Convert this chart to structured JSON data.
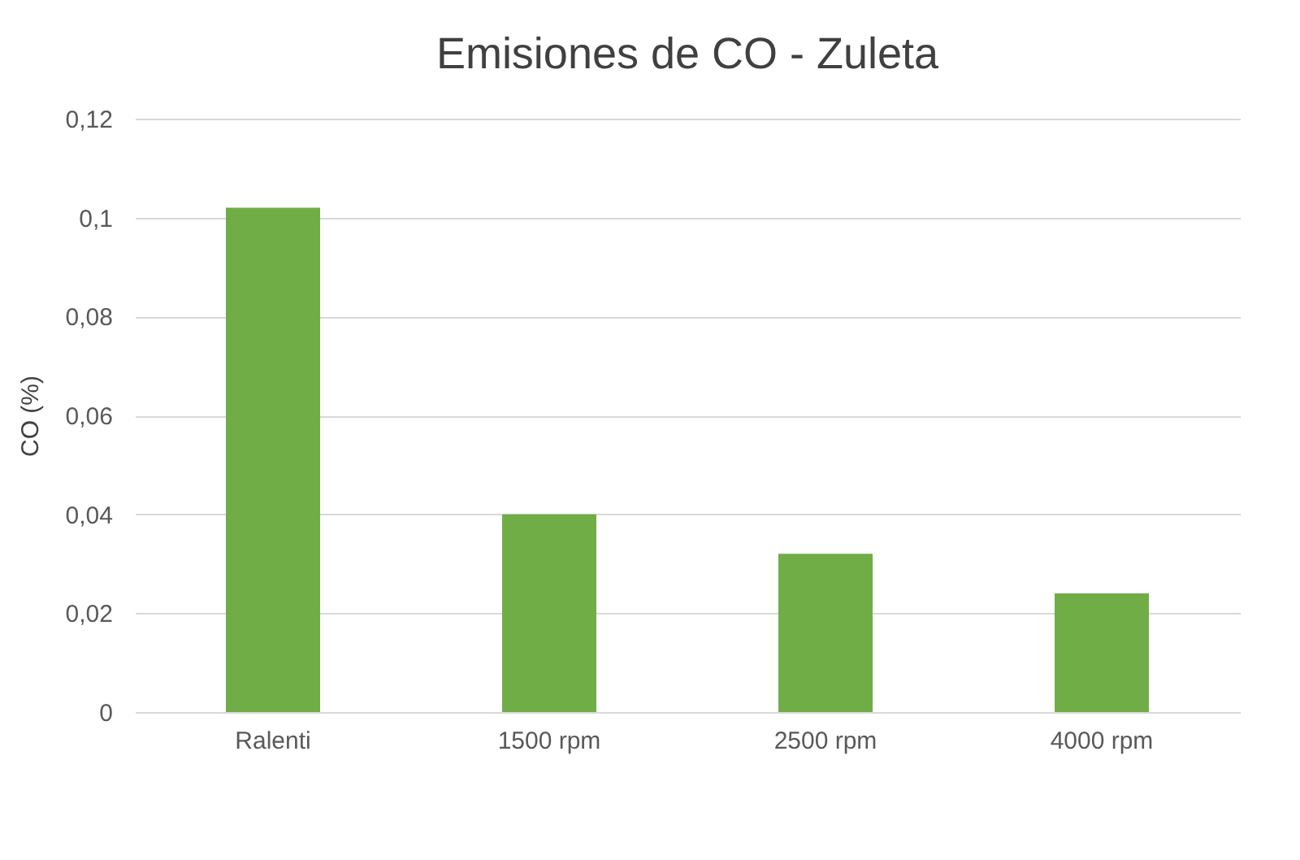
{
  "chart_data": {
    "type": "bar",
    "title": "Emisiones de CO - Zuleta",
    "ylabel": "CO (%)",
    "categories": [
      "Ralenti",
      "1500 rpm",
      "2500 rpm",
      "4000 rpm"
    ],
    "values": [
      0.102,
      0.04,
      0.032,
      0.024
    ],
    "color": "#70ad47",
    "ylim": [
      0,
      0.12
    ],
    "yticks": [
      0,
      {
        "value": 0.02,
        "label": "0,02"
      },
      {
        "value": 0.04,
        "label": "0,04"
      },
      {
        "value": 0.06,
        "label": "0,06"
      },
      {
        "value": 0.08,
        "label": "0,08"
      },
      {
        "value": 0.1,
        "label": "0,1"
      },
      {
        "value": 0.12,
        "label": "0,12"
      }
    ],
    "grid": "y"
  }
}
